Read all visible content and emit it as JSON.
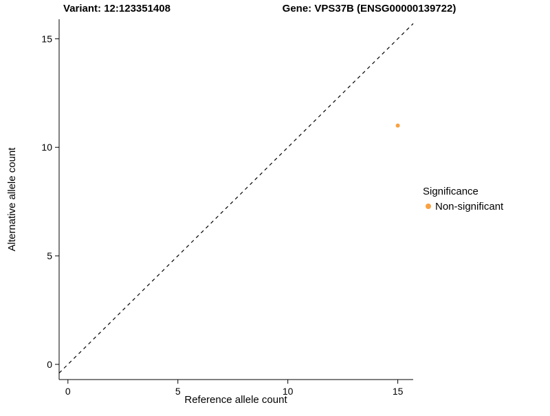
{
  "header": {
    "variant_title": "Variant: 12:123351408",
    "gene_title": "Gene: VPS37B (ENSG00000139722)"
  },
  "chart_data": {
    "type": "scatter",
    "title_left": "Variant: 12:123351408",
    "title_right": "Gene: VPS37B (ENSG00000139722)",
    "xlabel": "Reference allele count",
    "ylabel": "Alternative allele count",
    "xlim": [
      -0.4,
      15.7
    ],
    "ylim": [
      -0.7,
      15.9
    ],
    "xticks": [
      0,
      5,
      10,
      15
    ],
    "yticks": [
      0,
      5,
      10,
      15
    ],
    "grid": false,
    "background": "#ffffff",
    "axis_color": "#000000",
    "identity_line": {
      "style": "dashed",
      "color": "#000000",
      "from": -0.4,
      "to": 15.7
    },
    "series": [
      {
        "name": "Non-significant",
        "color": "#F9A242",
        "points": [
          {
            "x": 15,
            "y": 11
          }
        ]
      }
    ],
    "legend": {
      "title": "Significance",
      "position": "right",
      "entries": [
        {
          "label": "Non-significant",
          "color": "#F9A242"
        }
      ]
    }
  }
}
